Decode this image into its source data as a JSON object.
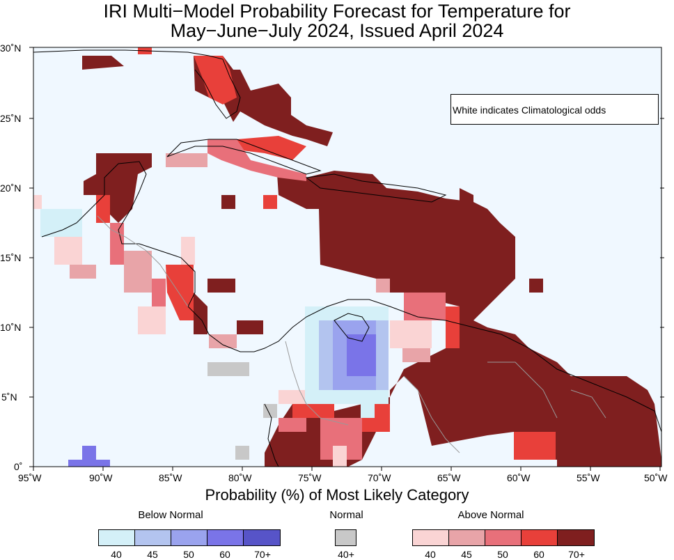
{
  "title": {
    "line1": "IRI Multi−Model Probability Forecast for Temperature for",
    "line2": "May−June−July 2024, Issued April 2024"
  },
  "note": "White indicates Climatological odds",
  "map": {
    "region": "Caribbean and Central America",
    "lon_range": [
      -95,
      -50
    ],
    "lat_range": [
      0,
      30
    ],
    "ocean_color": "#f0f8ff",
    "x_ticks": [
      "95˚W",
      "90˚W",
      "85˚W",
      "80˚W",
      "75˚W",
      "70˚W",
      "65˚W",
      "60˚W",
      "55˚W",
      "50˚W"
    ],
    "y_ticks": [
      "0˚",
      "5˚N",
      "10˚N",
      "15˚N",
      "20˚N",
      "25˚N",
      "30˚N"
    ],
    "regions": [
      {
        "name": "florida",
        "category": "above-70"
      },
      {
        "name": "bahamas",
        "category": "above-70"
      },
      {
        "name": "cuba",
        "category": "above-50"
      },
      {
        "name": "hispaniola",
        "category": "above-70"
      },
      {
        "name": "yucatan",
        "category": "above-70"
      },
      {
        "name": "colombia-north",
        "category": "below-50"
      },
      {
        "name": "south-america-interior",
        "category": "above-70"
      },
      {
        "name": "lesser-antilles",
        "category": "above-70"
      }
    ]
  },
  "xlabel": "Probability (%) of Most Likely Category",
  "legend": {
    "below": {
      "label": "Below Normal",
      "colors": [
        "#d4f0f8",
        "#b3c4ef",
        "#9aa3ee",
        "#7a74e8",
        "#5754c8"
      ],
      "ticks": [
        "40",
        "45",
        "50",
        "60",
        "70+"
      ]
    },
    "normal": {
      "label": "Normal",
      "colors": [
        "#c8c8c8"
      ],
      "ticks": [
        "40+"
      ]
    },
    "above": {
      "label": "Above Normal",
      "colors": [
        "#fad4d4",
        "#e8a4a8",
        "#e8707a",
        "#e8403a",
        "#7f1f1f"
      ],
      "ticks": [
        "40",
        "45",
        "50",
        "60",
        "70+"
      ]
    }
  }
}
